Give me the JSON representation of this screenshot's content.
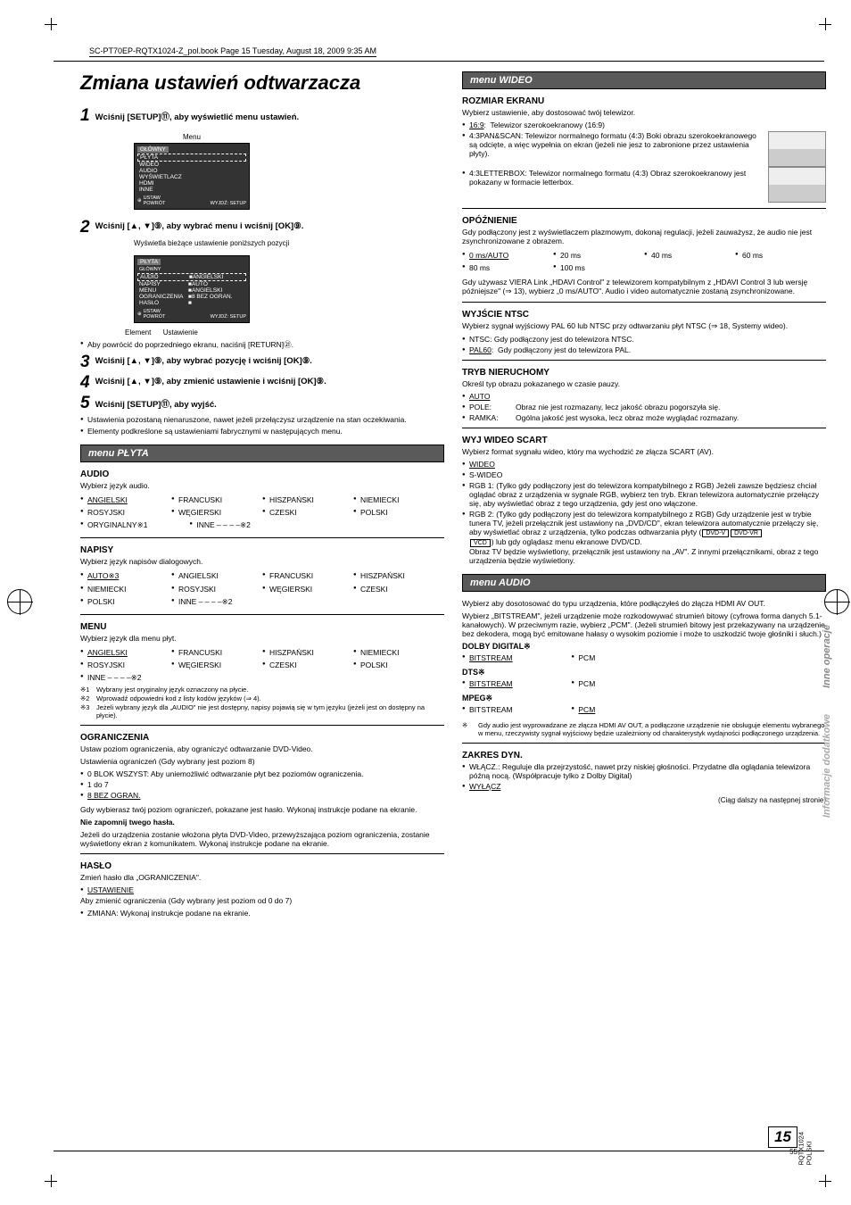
{
  "book_header": "SC-PT70EP-RQTX1024-Z_pol.book  Page 15  Tuesday, August 18, 2009  9:35 AM",
  "title": "Zmiana ustawień odtwarzacza",
  "steps": {
    "s1": "Wciśnij [SETUP]⑪, aby wyświetlić menu ustawień.",
    "s2": "Wciśnij [▲, ▼]⑨, aby wybrać menu i wciśnij [OK]⑨.",
    "s3": "Wciśnij [▲, ▼]⑨, aby wybrać pozycję i wciśnij [OK]⑨.",
    "s4": "Wciśnij [▲, ▼]⑨, aby zmienić ustawienie i wciśnij [OK]⑨.",
    "s5": "Wciśnij [SETUP]⑪, aby wyjść."
  },
  "menu_box": {
    "title": "Menu",
    "tab": "GŁÓWNY",
    "items": [
      "PŁYTA",
      "WIDEO",
      "AUDIO",
      "WYŚWIETLACZ",
      "HDMI",
      "INNE"
    ],
    "foot_l": "USTAW\nPOWRÓT",
    "foot_r": "WYJDŹ: SETUP"
  },
  "note1": "Wyświetla bieżące ustawienie poniższych pozycji",
  "menu_box2": {
    "tab": "PŁYTA",
    "grp": "GŁÓWNY",
    "rows": [
      [
        "AUDIO",
        "ANGIELSKI"
      ],
      [
        "NAPISY",
        "AUTO"
      ],
      [
        "MENU",
        "ANGIELSKI"
      ],
      [
        "OGRANICZENIA",
        "8 BEZ OGRAN."
      ],
      [
        "HASŁO",
        ""
      ]
    ],
    "foot_l": "USTAW\nPOWRÓT",
    "foot_r": "WYJDŹ: SETUP"
  },
  "labels_under": {
    "a": "Element",
    "b": "Ustawienie"
  },
  "return_note": "Aby powrócić do poprzedniego ekranu, naciśnij [RETURN]㉑.",
  "persist1": "Ustawienia pozostaną nienaruszone, nawet jeżeli przełączysz urządzenie na stan oczekiwania.",
  "persist2": "Elementy podkreślone są ustawieniami fabrycznymi w następujących menu.",
  "bar_plyta": "menu PŁYTA",
  "audio": {
    "h": "AUDIO",
    "d": "Wybierz język audio.",
    "opts": [
      "ANGIELSKI",
      "FRANCUSKI",
      "HISZPAŃSKI",
      "NIEMIECKI",
      "ROSYJSKI",
      "WĘGIERSKI",
      "CZESKI",
      "POLSKI",
      "ORYGINALNY※1",
      "INNE – – – –※2"
    ]
  },
  "napisy": {
    "h": "NAPISY",
    "d": "Wybierz język napisów dialogowych.",
    "opts": [
      "AUTO※3",
      "ANGIELSKI",
      "FRANCUSKI",
      "HISZPAŃSKI",
      "NIEMIECKI",
      "ROSYJSKI",
      "WĘGIERSKI",
      "CZESKI",
      "POLSKI",
      "INNE – – – –※2"
    ]
  },
  "menu_sec": {
    "h": "MENU",
    "d": "Wybierz język dla menu płyt.",
    "opts": [
      "ANGIELSKI",
      "FRANCUSKI",
      "HISZPAŃSKI",
      "NIEMIECKI",
      "ROSYJSKI",
      "WĘGIERSKI",
      "CZESKI",
      "POLSKI",
      "INNE – – – –※2"
    ]
  },
  "fns": {
    "f1": "Wybrany jest oryginalny język oznaczony na płycie.",
    "f2": "Wprowadź odpowiedni kod z listy kodów języków (⇒ 4).",
    "f3": "Jeżeli wybrany język dla „AUDIO\" nie jest dostępny, napisy pojawią się w tym języku (jeżeli jest on dostępny na płycie)."
  },
  "ogran": {
    "h": "OGRANICZENIA",
    "d1": "Ustaw poziom ograniczenia, aby ograniczyć odtwarzanie DVD-Video.",
    "d2": "Ustawienia ograniczeń (Gdy wybrany jest poziom 8)",
    "o1": "0 BLOK WSZYST: Aby uniemożliwić odtwarzanie płyt bez poziomów ograniczenia.",
    "o2": "1 do 7",
    "o3": "8 BEZ OGRAN.",
    "p1": "Gdy wybierasz twój poziom ograniczeń, pokazane jest hasło. Wykonaj instrukcje podane na ekranie.",
    "p2": "Nie zapomnij twego hasła.",
    "p3": "Jeżeli do urządzenia zostanie włożona płyta DVD-Video, przewyższająca poziom ograniczenia, zostanie wyświetlony ekran z komunikatem. Wykonaj instrukcje podane na ekranie."
  },
  "haslo": {
    "h": "HASŁO",
    "d": "Zmień hasło dla „OGRANICZENIA\".",
    "o1": "USTAWIENIE",
    "p1": "Aby zmienić ograniczenia (Gdy wybrany jest poziom od 0 do 7)",
    "o2": "ZMIANA: Wykonaj instrukcje podane na ekranie."
  },
  "bar_wideo": "menu WIDEO",
  "rozmiar": {
    "h": "ROZMIAR EKRANU",
    "d": "Wybierz ustawienie, aby dostosować twój telewizor.",
    "o1": "16:9:  Telewizor szerokoekranowy (16:9)",
    "o2": "4:3PAN&SCAN:  Telewizor normalnego formatu (4:3) Boki obrazu szerokoekranowego są odcięte, a więc wypełnia on ekran (jeżeli nie jesz to zabronione przez ustawienia płyty).",
    "o3": "4:3LETTERBOX:  Telewizor normalnego formatu (4:3) Obraz szerokoekranowy jest pokazany w formacie letterbox."
  },
  "opoz": {
    "h": "OPÓŹNIENIE",
    "d": "Gdy podłączony jest z wyświetlaczem plazmowym, dokonaj regulacji, jeżeli zauważysz, że audio nie jest zsynchronizowane z obrazem.",
    "opts": [
      "0 ms/AUTO",
      "20 ms",
      "40 ms",
      "60 ms",
      "80 ms",
      "100 ms"
    ],
    "p": "Gdy używasz VIERA Link „HDAVI Control\" z telewizorem kompatybilnym z „HDAVI Control 3 lub wersję późniejsze\" (⇒ 13), wybierz „0 ms/AUTO\". Audio i video automatycznie zostaną zsynchronizowane."
  },
  "ntsc": {
    "h": "WYJŚCIE NTSC",
    "d": "Wybierz sygnał wyjściowy PAL 60 lub NTSC przy odtwarzaniu płyt NTSC (⇒ 18, Systemy wideo).",
    "o1": "NTSC:  Gdy podłączony jest do telewizora NTSC.",
    "o2": "PAL60:  Gdy podłączony jest do telewizora PAL."
  },
  "tryb": {
    "h": "TRYB NIERUCHOMY",
    "d": "Określ typ obrazu pokazanego w czasie pauzy.",
    "o1": "AUTO",
    "o2l": "POLE:",
    "o2": "Obraz nie jest rozmazany, lecz jakość obrazu pogorszyła się.",
    "o3l": "RAMKA:",
    "o3": "Ogólna jakość jest wysoka, lecz obraz może wyglądać rozmazany."
  },
  "scart": {
    "h": "WYJ WIDEO SCART",
    "d": "Wybierz format sygnału wideo, który ma wychodzić ze złącza SCART (AV).",
    "o1": "WIDEO",
    "o2": "S-WIDEO",
    "o3": "RGB 1: (Tylko gdy podłączony jest do telewizora kompatybilnego z RGB) Jeżeli zawsze będziesz chciał oglądać obraz z urządzenia w sygnale RGB, wybierz ten tryb. Ekran telewizora automatycznie przełączy się, aby wyświetlać obraz z tego urządzenia, gdy jest ono włączone.",
    "o4": "RGB 2: (Tylko gdy podłączony jest do telewizora kompatybilnego z RGB) Gdy urządzenie jest w trybie tunera TV, jeżeli przełącznik jest ustawiony na „DVD/CD\", ekran telewizora automatycznie przełączy się, aby wyświetlać obraz z urządzenia, tylko podczas odtwarzania płyty (",
    "o4b": ") lub gdy oglądasz menu ekranowe DVD/CD.",
    "o4c": "Obraz TV będzie wyświetlony, przełącznik jest ustawiony na „AV\". Z innymi przełącznikami, obraz z tego urządzenia będzie wyświetlony."
  },
  "bar_audio": "menu AUDIO",
  "audio2": {
    "d": "Wybierz aby dosotosować do typu urządzenia, które podłączyłeś do złącza HDMI AV OUT.",
    "d2": "Wybierz „BITSTREAM\", jeżeli urządzenie może rozkodowywać strumień bitowy (cyfrowa forma danych 5.1-kanałowych). W przeciwnym razie, wybierz „PCM\". (Jeżeli strumień bitowy jest przekazywany na urządzenie bez dekodera, mogą być emitowane hałasy o wysokim poziomie i może to uszkodzić twoje głośniki i słuch.)"
  },
  "dolby": {
    "h": "DOLBY DIGITAL※",
    "o1": "BITSTREAM",
    "o2": "PCM"
  },
  "dts": {
    "h": "DTS※",
    "o1": "BITSTREAM",
    "o2": "PCM"
  },
  "mpeg": {
    "h": "MPEG※",
    "o1": "BITSTREAM",
    "o2": "PCM"
  },
  "fn_audio": "Gdy audio jest wyprowadzane ze złącza HDMI AV OUT, a podłączone urządzenie nie obsługuje elementu wybranego w menu, rzeczywisty sygnał wyjściowy będzie uzależniony od charakterystyk wydajności podłączonego urządzenia.",
  "zakres": {
    "h": "ZAKRES DYN.",
    "o1": "WŁĄCZ.: Reguluje dla przejrzystość, nawet przy niskiej głośności. Przydatne dla oglądania telewizora późną nocą. (Współpracuje tylko z Dolby Digital)",
    "o2": "WYŁĄCZ"
  },
  "continue": "(Ciąg dalszy na następnej stronie)",
  "side": {
    "l1": "Informacje dodatkowe",
    "l2": "Inne operacje"
  },
  "code": "RQTX1024\nPOLSKI",
  "page_big": "15",
  "page_small": "55"
}
